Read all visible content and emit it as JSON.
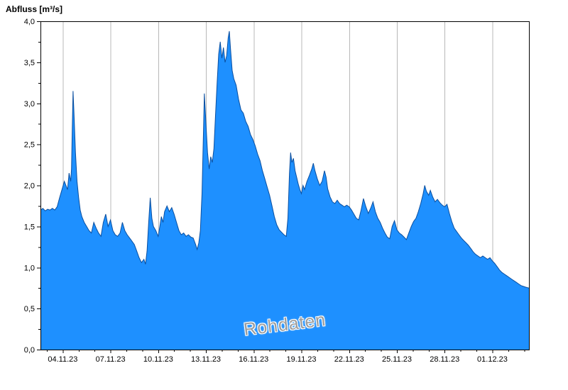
{
  "axis_title": "Abfluss [m³/s]",
  "watermark": "Rohdaten",
  "colors": {
    "area_fill": "#1e90ff",
    "area_line": "#0a4fa0",
    "grid": "#b8b8b8",
    "frame": "#000000",
    "tick_text": "#000000"
  },
  "chart_data": {
    "type": "area",
    "title": "Abfluss [m³/s]",
    "xlabel": "",
    "ylabel": "Abfluss [m³/s]",
    "xlim": [
      0,
      30.7
    ],
    "ylim": [
      0,
      4.0
    ],
    "grid": "vertical-only",
    "legend": "none",
    "annotation": "Rohdaten",
    "xticks": [
      {
        "t": 1.4,
        "label": "04.11.23"
      },
      {
        "t": 4.4,
        "label": "07.11.23"
      },
      {
        "t": 7.4,
        "label": "10.11.23"
      },
      {
        "t": 10.4,
        "label": "13.11.23"
      },
      {
        "t": 13.4,
        "label": "16.11.23"
      },
      {
        "t": 16.4,
        "label": "19.11.23"
      },
      {
        "t": 19.4,
        "label": "22.11.23"
      },
      {
        "t": 22.4,
        "label": "25.11.23"
      },
      {
        "t": 25.4,
        "label": "28.11.23"
      },
      {
        "t": 28.4,
        "label": "01.12.23"
      }
    ],
    "yticks": [
      {
        "v": 0.0,
        "label": "0,0"
      },
      {
        "v": 0.5,
        "label": "0,5"
      },
      {
        "v": 1.0,
        "label": "1,0"
      },
      {
        "v": 1.5,
        "label": "1,5"
      },
      {
        "v": 2.0,
        "label": "2,0"
      },
      {
        "v": 2.5,
        "label": "2,5"
      },
      {
        "v": 3.0,
        "label": "3,0"
      },
      {
        "v": 3.5,
        "label": "3,5"
      },
      {
        "v": 4.0,
        "label": "4,0"
      }
    ],
    "xminor": {
      "start": 0.4,
      "step": 1.0
    },
    "yminor": {
      "step": 0.25
    },
    "points": [
      [
        0,
        1.7
      ],
      [
        0.15,
        1.72
      ],
      [
        0.3,
        1.69
      ],
      [
        0.45,
        1.71
      ],
      [
        0.6,
        1.7
      ],
      [
        0.75,
        1.72
      ],
      [
        0.9,
        1.7
      ],
      [
        1.05,
        1.74
      ],
      [
        1.2,
        1.85
      ],
      [
        1.35,
        1.95
      ],
      [
        1.5,
        2.05
      ],
      [
        1.6,
        2.0
      ],
      [
        1.7,
        1.95
      ],
      [
        1.8,
        2.15
      ],
      [
        1.9,
        2.05
      ],
      [
        1.95,
        2.2
      ],
      [
        2.0,
        2.7
      ],
      [
        2.05,
        3.15
      ],
      [
        2.1,
        2.9
      ],
      [
        2.2,
        2.4
      ],
      [
        2.3,
        2.05
      ],
      [
        2.4,
        1.85
      ],
      [
        2.5,
        1.7
      ],
      [
        2.6,
        1.62
      ],
      [
        2.75,
        1.55
      ],
      [
        2.9,
        1.5
      ],
      [
        3.05,
        1.45
      ],
      [
        3.2,
        1.42
      ],
      [
        3.35,
        1.55
      ],
      [
        3.5,
        1.48
      ],
      [
        3.65,
        1.42
      ],
      [
        3.8,
        1.38
      ],
      [
        3.95,
        1.55
      ],
      [
        4.1,
        1.65
      ],
      [
        4.25,
        1.5
      ],
      [
        4.4,
        1.58
      ],
      [
        4.55,
        1.45
      ],
      [
        4.7,
        1.4
      ],
      [
        4.85,
        1.38
      ],
      [
        5.0,
        1.42
      ],
      [
        5.15,
        1.55
      ],
      [
        5.3,
        1.45
      ],
      [
        5.45,
        1.4
      ],
      [
        5.6,
        1.36
      ],
      [
        5.75,
        1.32
      ],
      [
        5.9,
        1.28
      ],
      [
        6.05,
        1.2
      ],
      [
        6.2,
        1.12
      ],
      [
        6.35,
        1.06
      ],
      [
        6.5,
        1.1
      ],
      [
        6.6,
        1.04
      ],
      [
        6.7,
        1.2
      ],
      [
        6.8,
        1.55
      ],
      [
        6.9,
        1.85
      ],
      [
        7.0,
        1.6
      ],
      [
        7.1,
        1.5
      ],
      [
        7.25,
        1.45
      ],
      [
        7.4,
        1.38
      ],
      [
        7.5,
        1.5
      ],
      [
        7.6,
        1.62
      ],
      [
        7.7,
        1.55
      ],
      [
        7.8,
        1.68
      ],
      [
        7.95,
        1.75
      ],
      [
        8.1,
        1.68
      ],
      [
        8.25,
        1.73
      ],
      [
        8.4,
        1.65
      ],
      [
        8.55,
        1.55
      ],
      [
        8.7,
        1.45
      ],
      [
        8.85,
        1.4
      ],
      [
        9.0,
        1.42
      ],
      [
        9.15,
        1.38
      ],
      [
        9.3,
        1.4
      ],
      [
        9.45,
        1.37
      ],
      [
        9.6,
        1.36
      ],
      [
        9.75,
        1.28
      ],
      [
        9.85,
        1.22
      ],
      [
        9.95,
        1.3
      ],
      [
        10.05,
        1.45
      ],
      [
        10.15,
        1.9
      ],
      [
        10.25,
        2.7
      ],
      [
        10.3,
        3.12
      ],
      [
        10.4,
        2.75
      ],
      [
        10.5,
        2.4
      ],
      [
        10.6,
        2.2
      ],
      [
        10.7,
        2.35
      ],
      [
        10.8,
        2.28
      ],
      [
        10.9,
        2.45
      ],
      [
        11.0,
        2.85
      ],
      [
        11.1,
        3.25
      ],
      [
        11.2,
        3.6
      ],
      [
        11.3,
        3.75
      ],
      [
        11.4,
        3.55
      ],
      [
        11.5,
        3.68
      ],
      [
        11.6,
        3.5
      ],
      [
        11.7,
        3.58
      ],
      [
        11.8,
        3.8
      ],
      [
        11.87,
        3.88
      ],
      [
        11.95,
        3.65
      ],
      [
        12.05,
        3.4
      ],
      [
        12.15,
        3.3
      ],
      [
        12.3,
        3.22
      ],
      [
        12.45,
        3.05
      ],
      [
        12.6,
        2.92
      ],
      [
        12.75,
        2.88
      ],
      [
        12.9,
        2.78
      ],
      [
        13.05,
        2.72
      ],
      [
        13.2,
        2.62
      ],
      [
        13.35,
        2.56
      ],
      [
        13.5,
        2.48
      ],
      [
        13.65,
        2.38
      ],
      [
        13.8,
        2.3
      ],
      [
        13.95,
        2.18
      ],
      [
        14.1,
        2.08
      ],
      [
        14.25,
        1.98
      ],
      [
        14.4,
        1.88
      ],
      [
        14.55,
        1.75
      ],
      [
        14.7,
        1.62
      ],
      [
        14.85,
        1.52
      ],
      [
        15.0,
        1.46
      ],
      [
        15.15,
        1.43
      ],
      [
        15.3,
        1.4
      ],
      [
        15.45,
        1.38
      ],
      [
        15.55,
        1.6
      ],
      [
        15.65,
        2.15
      ],
      [
        15.72,
        2.4
      ],
      [
        15.8,
        2.28
      ],
      [
        15.9,
        2.33
      ],
      [
        16.0,
        2.18
      ],
      [
        16.1,
        2.1
      ],
      [
        16.2,
        2.02
      ],
      [
        16.3,
        1.95
      ],
      [
        16.4,
        1.9
      ],
      [
        16.5,
        2.0
      ],
      [
        16.6,
        1.95
      ],
      [
        16.75,
        2.05
      ],
      [
        16.9,
        2.12
      ],
      [
        17.05,
        2.2
      ],
      [
        17.15,
        2.27
      ],
      [
        17.25,
        2.18
      ],
      [
        17.4,
        2.08
      ],
      [
        17.55,
        2.0
      ],
      [
        17.7,
        2.05
      ],
      [
        17.85,
        2.18
      ],
      [
        17.95,
        2.1
      ],
      [
        18.05,
        1.96
      ],
      [
        18.2,
        1.86
      ],
      [
        18.35,
        1.8
      ],
      [
        18.5,
        1.78
      ],
      [
        18.65,
        1.82
      ],
      [
        18.8,
        1.78
      ],
      [
        18.95,
        1.76
      ],
      [
        19.1,
        1.74
      ],
      [
        19.25,
        1.76
      ],
      [
        19.4,
        1.74
      ],
      [
        19.55,
        1.7
      ],
      [
        19.7,
        1.65
      ],
      [
        19.85,
        1.6
      ],
      [
        20.0,
        1.58
      ],
      [
        20.15,
        1.7
      ],
      [
        20.3,
        1.84
      ],
      [
        20.45,
        1.74
      ],
      [
        20.6,
        1.66
      ],
      [
        20.75,
        1.72
      ],
      [
        20.9,
        1.8
      ],
      [
        21.05,
        1.68
      ],
      [
        21.2,
        1.6
      ],
      [
        21.35,
        1.55
      ],
      [
        21.5,
        1.48
      ],
      [
        21.65,
        1.42
      ],
      [
        21.8,
        1.37
      ],
      [
        21.95,
        1.35
      ],
      [
        22.1,
        1.5
      ],
      [
        22.25,
        1.57
      ],
      [
        22.4,
        1.46
      ],
      [
        22.55,
        1.42
      ],
      [
        22.7,
        1.4
      ],
      [
        22.85,
        1.37
      ],
      [
        23.0,
        1.34
      ],
      [
        23.15,
        1.42
      ],
      [
        23.3,
        1.5
      ],
      [
        23.45,
        1.56
      ],
      [
        23.6,
        1.6
      ],
      [
        23.75,
        1.68
      ],
      [
        23.9,
        1.78
      ],
      [
        24.05,
        1.9
      ],
      [
        24.15,
        2.0
      ],
      [
        24.25,
        1.93
      ],
      [
        24.4,
        1.88
      ],
      [
        24.5,
        1.94
      ],
      [
        24.65,
        1.86
      ],
      [
        24.8,
        1.8
      ],
      [
        24.95,
        1.83
      ],
      [
        25.1,
        1.79
      ],
      [
        25.25,
        1.76
      ],
      [
        25.4,
        1.74
      ],
      [
        25.55,
        1.77
      ],
      [
        25.7,
        1.66
      ],
      [
        25.85,
        1.56
      ],
      [
        26.0,
        1.48
      ],
      [
        26.15,
        1.44
      ],
      [
        26.3,
        1.4
      ],
      [
        26.45,
        1.36
      ],
      [
        26.6,
        1.33
      ],
      [
        26.75,
        1.3
      ],
      [
        26.9,
        1.27
      ],
      [
        27.05,
        1.23
      ],
      [
        27.2,
        1.19
      ],
      [
        27.35,
        1.16
      ],
      [
        27.5,
        1.14
      ],
      [
        27.65,
        1.12
      ],
      [
        27.8,
        1.14
      ],
      [
        27.95,
        1.12
      ],
      [
        28.1,
        1.1
      ],
      [
        28.25,
        1.12
      ],
      [
        28.4,
        1.08
      ],
      [
        28.55,
        1.05
      ],
      [
        28.7,
        1.01
      ],
      [
        28.85,
        0.97
      ],
      [
        29.0,
        0.94
      ],
      [
        29.15,
        0.92
      ],
      [
        29.3,
        0.9
      ],
      [
        29.45,
        0.88
      ],
      [
        29.6,
        0.86
      ],
      [
        29.75,
        0.84
      ],
      [
        29.9,
        0.82
      ],
      [
        30.05,
        0.8
      ],
      [
        30.2,
        0.78
      ],
      [
        30.35,
        0.77
      ],
      [
        30.5,
        0.76
      ],
      [
        30.7,
        0.75
      ]
    ]
  }
}
